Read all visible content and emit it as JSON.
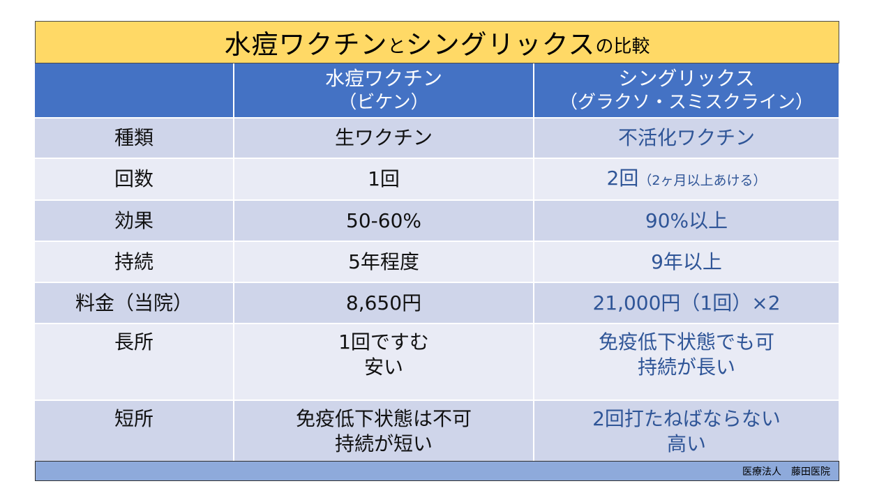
{
  "title": {
    "part1": "水痘ワクチン",
    "connector": "と",
    "part2": "シングリックス",
    "suffix": "の比較"
  },
  "table": {
    "header": {
      "corner": "",
      "varicella": {
        "line1": "水痘ワクチン",
        "line2": "（ビケン）"
      },
      "shingrix": {
        "line1": "シングリックス",
        "line2": "（グラクソ・スミスクライン）"
      }
    },
    "rows": [
      {
        "label": "種類",
        "varicella": [
          "生ワクチン"
        ],
        "shingrix": [
          "不活化ワクチン"
        ],
        "shingrix_note": ""
      },
      {
        "label": "回数",
        "varicella": [
          "1回"
        ],
        "shingrix": [
          "2回"
        ],
        "shingrix_note": "（2ヶ月以上あける）"
      },
      {
        "label": "効果",
        "varicella": [
          "50-60%"
        ],
        "shingrix": [
          "90%以上"
        ],
        "shingrix_note": ""
      },
      {
        "label": "持続",
        "varicella": [
          "5年程度"
        ],
        "shingrix": [
          "9年以上"
        ],
        "shingrix_note": ""
      },
      {
        "label": "料金（当院）",
        "varicella": [
          "8,650円"
        ],
        "shingrix": [
          "21,000円（1回）×2"
        ],
        "shingrix_note": ""
      },
      {
        "label": "長所",
        "varicella": [
          "1回ですむ",
          "安い"
        ],
        "shingrix": [
          "免疫低下状態でも可",
          "持続が長い"
        ],
        "shingrix_note": ""
      },
      {
        "label": "短所",
        "varicella": [
          "免疫低下状態は不可",
          "持続が短い"
        ],
        "shingrix": [
          "2回打たねばならない",
          "高い"
        ],
        "shingrix_note": ""
      }
    ]
  },
  "footer": {
    "clinic": "医療法人　藤田医院"
  },
  "colors": {
    "title_bg": "#ffd966",
    "header_bg": "#4472c4",
    "row_dark": "#cfd5ea",
    "row_light": "#e9ebf5",
    "shingrix_text": "#2f5597",
    "footer_bg": "#8eaadb"
  }
}
